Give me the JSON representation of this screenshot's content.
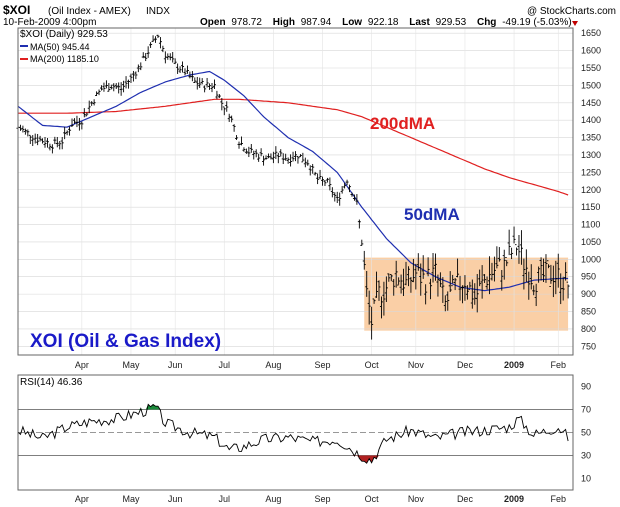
{
  "header": {
    "symbol": "$XOI",
    "name": "(Oil Index - AMEX)",
    "exchange": "INDX",
    "copyright": "@ StockCharts.com",
    "date": "10-Feb-2009 4:00pm",
    "open_label": "Open",
    "open": "978.72",
    "high_label": "High",
    "high": "987.94",
    "low_label": "Low",
    "low": "922.18",
    "last_label": "Last",
    "last": "929.53",
    "chg_label": "Chg",
    "chg": "-49.19 (-5.03%)"
  },
  "colors": {
    "price": "#000000",
    "ma50": "#1f2fb0",
    "ma200": "#e02020",
    "box": "#f9c797",
    "rsi_overbought": "#1a8a3a",
    "rsi_oversold": "#b02020",
    "title_text": "#1a1ac8"
  },
  "chart_data": [
    {
      "type": "line",
      "legend": [
        {
          "label": "$XOI (Daily) 929.53",
          "color": "#000000"
        },
        {
          "label": "MA(50) 945.44",
          "color": "#1f2fb0"
        },
        {
          "label": "MA(200) 1185.10",
          "color": "#e02020"
        }
      ],
      "annotations": {
        "ma200_label": "200dMA",
        "ma50_label": "50dMA",
        "title": "XOI (Oil & Gas Index)"
      },
      "x_ticks": [
        "Apr",
        "May",
        "Jun",
        "Jul",
        "Aug",
        "Sep",
        "Oct",
        "Nov",
        "Dec",
        "2009",
        "Feb"
      ],
      "x_tick_pos": [
        1.3,
        2.3,
        3.2,
        4.2,
        5.2,
        6.2,
        7.2,
        8.1,
        9.1,
        10.1,
        11.0
      ],
      "x_range": [
        0,
        11.3
      ],
      "y_ticks": [
        750,
        800,
        850,
        900,
        950,
        1000,
        1050,
        1100,
        1150,
        1200,
        1250,
        1300,
        1350,
        1400,
        1450,
        1500,
        1550,
        1600,
        1650
      ],
      "ylim": [
        725,
        1665
      ],
      "box": {
        "x0": 7.05,
        "x1": 11.2,
        "y0": 795,
        "y1": 1005
      },
      "price_anchors": [
        [
          0,
          1380
        ],
        [
          0.35,
          1350
        ],
        [
          0.7,
          1330
        ],
        [
          0.9,
          1340
        ],
        [
          1.1,
          1390
        ],
        [
          1.3,
          1400
        ],
        [
          1.5,
          1450
        ],
        [
          1.7,
          1490
        ],
        [
          1.9,
          1500
        ],
        [
          2.1,
          1490
        ],
        [
          2.3,
          1520
        ],
        [
          2.5,
          1560
        ],
        [
          2.7,
          1610
        ],
        [
          2.85,
          1645
        ],
        [
          3.0,
          1590
        ],
        [
          3.2,
          1560
        ],
        [
          3.4,
          1540
        ],
        [
          3.6,
          1510
        ],
        [
          3.8,
          1500
        ],
        [
          4.0,
          1500
        ],
        [
          4.15,
          1450
        ],
        [
          4.3,
          1420
        ],
        [
          4.5,
          1340
        ],
        [
          4.7,
          1310
        ],
        [
          4.9,
          1300
        ],
        [
          5.1,
          1290
        ],
        [
          5.3,
          1300
        ],
        [
          5.5,
          1290
        ],
        [
          5.7,
          1300
        ],
        [
          5.9,
          1280
        ],
        [
          6.1,
          1230
        ],
        [
          6.3,
          1220
        ],
        [
          6.5,
          1170
        ],
        [
          6.7,
          1230
        ],
        [
          6.9,
          1160
        ],
        [
          7.0,
          1050
        ],
        [
          7.1,
          900
        ],
        [
          7.2,
          820
        ],
        [
          7.35,
          900
        ],
        [
          7.5,
          920
        ],
        [
          7.7,
          960
        ],
        [
          7.9,
          930
        ],
        [
          8.1,
          960
        ],
        [
          8.3,
          940
        ],
        [
          8.5,
          960
        ],
        [
          8.7,
          870
        ],
        [
          8.9,
          920
        ],
        [
          9.1,
          940
        ],
        [
          9.3,
          890
        ],
        [
          9.5,
          940
        ],
        [
          9.7,
          970
        ],
        [
          9.9,
          980
        ],
        [
          10.0,
          1010
        ],
        [
          10.15,
          1040
        ],
        [
          10.3,
          990
        ],
        [
          10.5,
          940
        ],
        [
          10.7,
          950
        ],
        [
          10.9,
          960
        ],
        [
          11.1,
          940
        ],
        [
          11.2,
          929
        ]
      ],
      "ma50_anchors": [
        [
          0,
          1440
        ],
        [
          0.5,
          1385
        ],
        [
          1.0,
          1380
        ],
        [
          1.5,
          1410
        ],
        [
          2.0,
          1440
        ],
        [
          2.5,
          1480
        ],
        [
          3.0,
          1510
        ],
        [
          3.5,
          1530
        ],
        [
          3.9,
          1540
        ],
        [
          4.2,
          1515
        ],
        [
          4.6,
          1470
        ],
        [
          5.0,
          1410
        ],
        [
          5.5,
          1350
        ],
        [
          6.0,
          1310
        ],
        [
          6.5,
          1250
        ],
        [
          7.0,
          1150
        ],
        [
          7.5,
          1060
        ],
        [
          8.0,
          990
        ],
        [
          8.5,
          950
        ],
        [
          9.0,
          920
        ],
        [
          9.5,
          910
        ],
        [
          10.0,
          920
        ],
        [
          10.5,
          940
        ],
        [
          11.0,
          945
        ],
        [
          11.2,
          945
        ]
      ],
      "ma200_anchors": [
        [
          0,
          1420
        ],
        [
          1.0,
          1420
        ],
        [
          2.0,
          1425
        ],
        [
          3.0,
          1440
        ],
        [
          3.5,
          1450
        ],
        [
          4.0,
          1460
        ],
        [
          4.5,
          1460
        ],
        [
          5.0,
          1455
        ],
        [
          5.5,
          1450
        ],
        [
          6.0,
          1440
        ],
        [
          6.5,
          1430
        ],
        [
          7.0,
          1410
        ],
        [
          7.5,
          1380
        ],
        [
          8.0,
          1350
        ],
        [
          8.5,
          1320
        ],
        [
          9.0,
          1290
        ],
        [
          9.5,
          1260
        ],
        [
          10.0,
          1235
        ],
        [
          10.5,
          1215
        ],
        [
          11.0,
          1195
        ],
        [
          11.2,
          1185
        ]
      ]
    },
    {
      "type": "line",
      "legend": [
        {
          "label": "RSI(14) 46.36",
          "color": "#000000"
        }
      ],
      "x_ticks": [
        "Apr",
        "May",
        "Jun",
        "Jul",
        "Aug",
        "Sep",
        "Oct",
        "Nov",
        "Dec",
        "2009",
        "Feb"
      ],
      "y_ticks": [
        10,
        30,
        50,
        70,
        90
      ],
      "ylim": [
        0,
        100
      ],
      "overbought": 70,
      "oversold": 30,
      "mid": 50,
      "rsi_anchors": [
        [
          0,
          52
        ],
        [
          0.5,
          45
        ],
        [
          1.0,
          55
        ],
        [
          1.5,
          60
        ],
        [
          2.0,
          62
        ],
        [
          2.5,
          68
        ],
        [
          2.8,
          72
        ],
        [
          3.0,
          58
        ],
        [
          3.5,
          50
        ],
        [
          4.0,
          46
        ],
        [
          4.3,
          35
        ],
        [
          4.6,
          38
        ],
        [
          5.0,
          44
        ],
        [
          5.5,
          46
        ],
        [
          6.0,
          42
        ],
        [
          6.5,
          44
        ],
        [
          7.0,
          30
        ],
        [
          7.2,
          26
        ],
        [
          7.5,
          44
        ],
        [
          8.0,
          52
        ],
        [
          8.5,
          45
        ],
        [
          9.0,
          50
        ],
        [
          9.5,
          52
        ],
        [
          10.0,
          55
        ],
        [
          10.2,
          62
        ],
        [
          10.5,
          48
        ],
        [
          11.0,
          55
        ],
        [
          11.2,
          46
        ]
      ]
    }
  ]
}
